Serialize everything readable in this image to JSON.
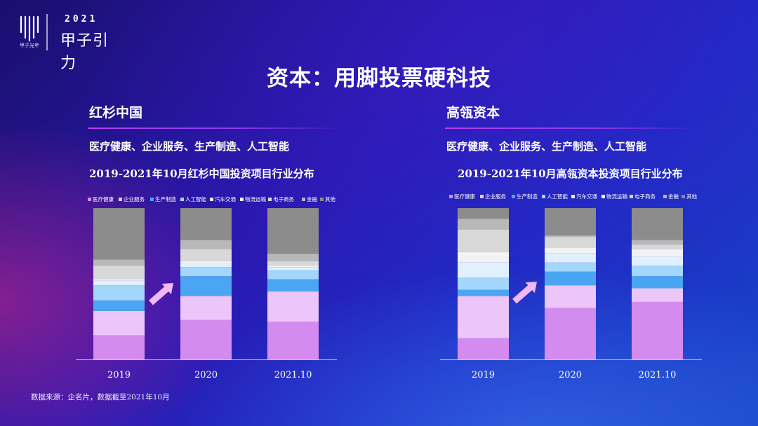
{
  "brand": {
    "year": "2021",
    "event": "甲子引力",
    "org": "甲子光年"
  },
  "title": "资本：用脚投票硬科技",
  "source_note": "数据来源：企名片，数据截至2021年10月",
  "colors": {
    "医疗健康": "#d48bf0",
    "企业服务": "#ecc6f8",
    "生产制造": "#4aa6f2",
    "人工智能": "#a2d6fb",
    "汽车交通": "#e0f0fe",
    "物流运输": "#f2f2f2",
    "电子商务": "#d8d8d8",
    "金融": "#b8b8b8",
    "其他": "#8c8c8c",
    "arrow": "#f0b8f5"
  },
  "panels": [
    {
      "heading": "红杉中国",
      "sectors": "医疗健康、企业服务、生产制造、人工智能",
      "chart_title": "2019-2021年10月红杉中国投资项目行业分布"
    },
    {
      "heading": "高瓴资本",
      "sectors": "医疗健康、企业服务、生产制造、人工智能",
      "chart_title": "2019-2021年10月高瓴资本投资项目行业分布"
    }
  ],
  "chart_data": [
    {
      "type": "bar",
      "stacked": true,
      "percent": true,
      "title": "2019-2021年10月红杉中国投资项目行业分布",
      "categories": [
        "2019",
        "2020",
        "2021.10"
      ],
      "legend_position": "top",
      "grid": false,
      "ylim": [
        0,
        100
      ],
      "series": [
        {
          "name": "医疗健康",
          "values": [
            16,
            26,
            25
          ]
        },
        {
          "name": "企业服务",
          "values": [
            16,
            16,
            20
          ]
        },
        {
          "name": "生产制造",
          "values": [
            7,
            13,
            8
          ]
        },
        {
          "name": "人工智能",
          "values": [
            10,
            6,
            6
          ]
        },
        {
          "name": "汽车交通",
          "values": [
            3,
            2,
            2
          ]
        },
        {
          "name": "物流运输",
          "values": [
            1,
            2,
            1
          ]
        },
        {
          "name": "电子商务",
          "values": [
            9,
            8,
            3
          ]
        },
        {
          "name": "金融",
          "values": [
            4,
            6,
            5
          ]
        },
        {
          "name": "其他",
          "values": [
            34,
            21,
            30
          ]
        }
      ]
    },
    {
      "type": "bar",
      "stacked": true,
      "percent": true,
      "title": "2019-2021年10月高瓴资本投资项目行业分布",
      "categories": [
        "2019",
        "2020",
        "2021.10"
      ],
      "legend_position": "top",
      "grid": false,
      "ylim": [
        0,
        100
      ],
      "series": [
        {
          "name": "医疗健康",
          "values": [
            14,
            34,
            38
          ]
        },
        {
          "name": "企业服务",
          "values": [
            28,
            15,
            9
          ]
        },
        {
          "name": "生产制造",
          "values": [
            4,
            9,
            8
          ]
        },
        {
          "name": "人工智能",
          "values": [
            8,
            6,
            7
          ]
        },
        {
          "name": "汽车交通",
          "values": [
            10,
            6,
            6
          ]
        },
        {
          "name": "物流运输",
          "values": [
            7,
            4,
            5
          ]
        },
        {
          "name": "电子商务",
          "values": [
            15,
            7,
            3
          ]
        },
        {
          "name": "金融",
          "values": [
            7,
            1,
            3
          ]
        },
        {
          "name": "其他",
          "values": [
            7,
            18,
            21
          ]
        }
      ]
    }
  ]
}
